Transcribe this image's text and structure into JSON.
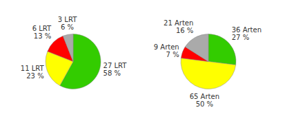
{
  "chart_data": [
    {
      "type": "pie",
      "values": [
        58,
        23,
        13,
        6
      ],
      "value_labels": [
        "27 LRT\n58 %",
        "11 LRT\n23 %",
        "6 LRT\n13 %",
        "3 LRT\n6 %"
      ],
      "colors": [
        "#33cc00",
        "#ffff00",
        "#ff0000",
        "#aaaaaa"
      ]
    },
    {
      "type": "pie",
      "values": [
        27,
        50,
        7,
        16
      ],
      "value_labels": [
        "36 Arten\n27 %",
        "65 Arten\n50 %",
        "9 Arten\n7 %",
        "21 Arten\n16 %"
      ],
      "colors": [
        "#33cc00",
        "#ffff00",
        "#ff0000",
        "#aaaaaa"
      ]
    }
  ]
}
